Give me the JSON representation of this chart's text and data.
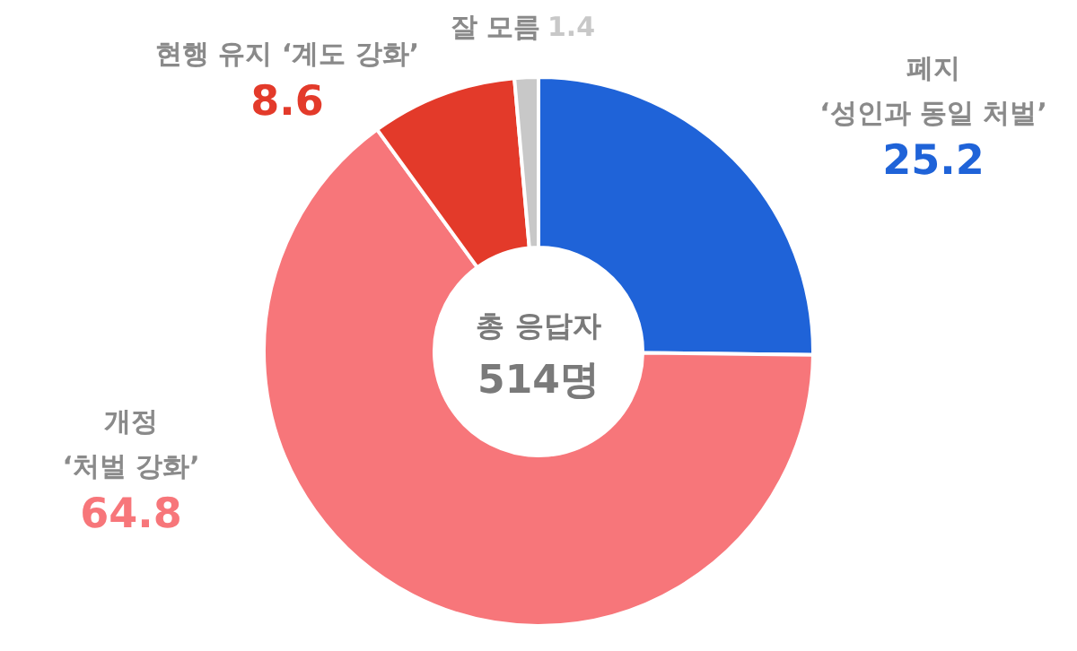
{
  "chart_data": {
    "type": "donut",
    "categories": [
      "폐지\n‘성인과 동일 처벌’",
      "개정\n‘처벌 강화’",
      "현행 유지  ‘계도 강화’",
      "잘 모름"
    ],
    "values": [
      25.2,
      64.8,
      8.6,
      1.4
    ],
    "colors": [
      "#1f63d8",
      "#f7767a",
      "#e33a2a",
      "#c8c8c8"
    ],
    "data_labels": true,
    "annotations": [
      "총 응답자",
      "514명"
    ]
  }
}
